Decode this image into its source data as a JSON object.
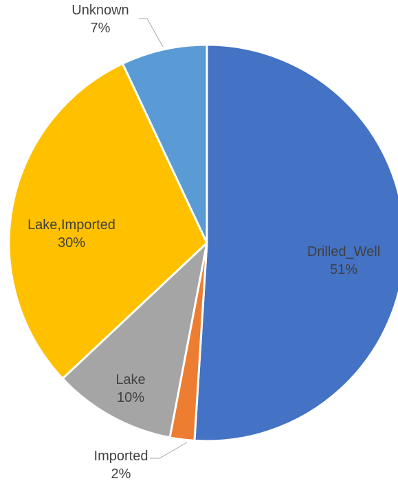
{
  "chart_data": {
    "type": "pie",
    "title": "",
    "slices": [
      {
        "name": "Drilled_Well",
        "percent_label": "51%",
        "value": 51,
        "color": "#4472c4"
      },
      {
        "name": "Imported",
        "percent_label": "2%",
        "value": 2,
        "color": "#ed7d31"
      },
      {
        "name": "Lake",
        "percent_label": "10%",
        "value": 10,
        "color": "#a5a5a5"
      },
      {
        "name": "Lake,Imported",
        "percent_label": "30%",
        "value": 30,
        "color": "#ffc000"
      },
      {
        "name": "Unknown",
        "percent_label": "7%",
        "value": 7,
        "color": "#5b9bd5"
      }
    ],
    "start_angle": "12 o'clock",
    "direction": "clockwise",
    "legend": "none",
    "data_labels": "category name and percentage"
  }
}
